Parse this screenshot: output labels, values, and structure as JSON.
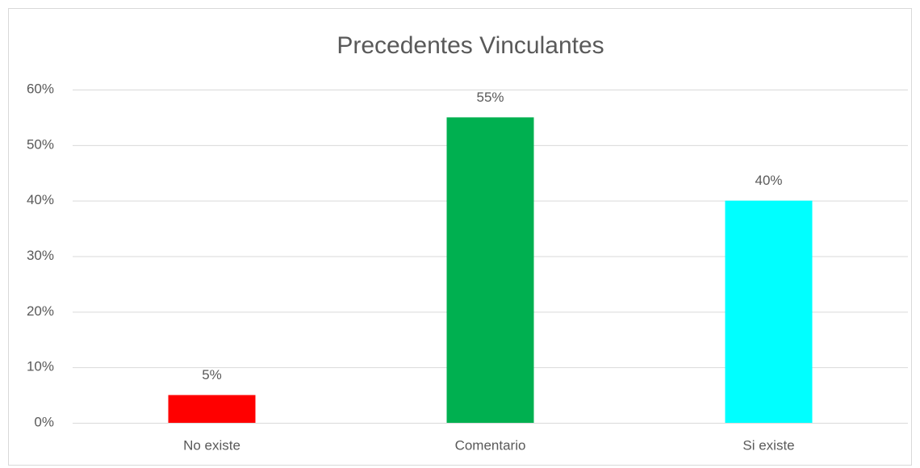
{
  "chart_data": {
    "type": "bar",
    "title": "Precedentes Vinculantes",
    "categories": [
      "No existe",
      "Comentario",
      "Si existe"
    ],
    "values": [
      5,
      55,
      40
    ],
    "value_labels": [
      "5%",
      "55%",
      "40%"
    ],
    "colors": [
      "#ff0000",
      "#00b050",
      "#00ffff"
    ],
    "ylim": [
      0,
      60
    ],
    "yticks": [
      {
        "value": 0,
        "label": "0%"
      },
      {
        "value": 10,
        "label": "10%"
      },
      {
        "value": 20,
        "label": "20%"
      },
      {
        "value": 30,
        "label": "30%"
      },
      {
        "value": 40,
        "label": "40%"
      },
      {
        "value": 50,
        "label": "50%"
      },
      {
        "value": 60,
        "label": "60%"
      }
    ],
    "grid": true
  }
}
